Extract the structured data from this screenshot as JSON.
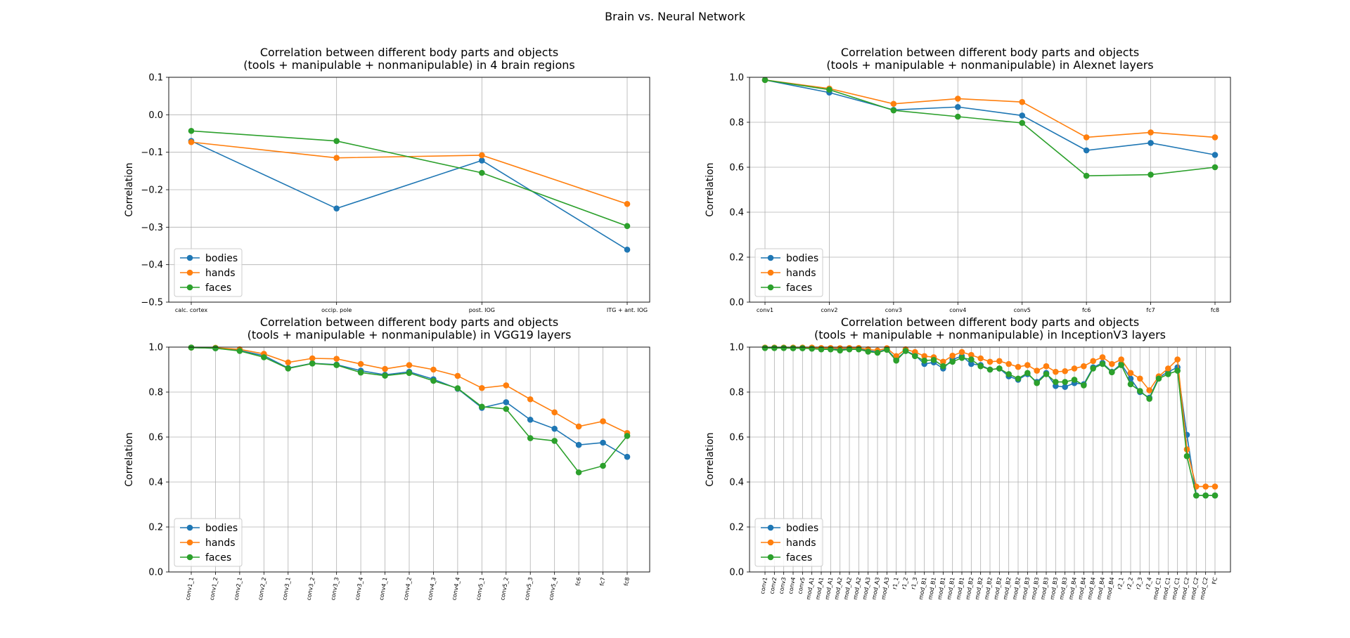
{
  "figure": {
    "suptitle": "Brain vs. Neural Network"
  },
  "chart_data": [
    {
      "type": "line",
      "title": "Correlation between different body parts and objects\n(tools + manipulable + nonmanipulable) in 4 brain regions",
      "xlabel": "",
      "ylabel": "Correlation",
      "ylim": [
        -0.5,
        0.1
      ],
      "yticks": [
        -0.5,
        -0.4,
        -0.3,
        -0.2,
        -0.1,
        0.0,
        0.1
      ],
      "categories": [
        "calc. cortex",
        "occip. pole",
        "post. IOG",
        "ITG + ant. IOG"
      ],
      "xtick_rotation": 0,
      "grid": true,
      "legend": "lower-left",
      "series": [
        {
          "name": "bodies",
          "color": "#1f77b4",
          "values": [
            -0.07,
            -0.25,
            -0.122,
            -0.36
          ]
        },
        {
          "name": "hands",
          "color": "#ff7f0e",
          "values": [
            -0.073,
            -0.115,
            -0.108,
            -0.238
          ]
        },
        {
          "name": "faces",
          "color": "#2ca02c",
          "values": [
            -0.043,
            -0.07,
            -0.155,
            -0.297
          ]
        }
      ]
    },
    {
      "type": "line",
      "title": "Correlation between different body parts and objects\n(tools + manipulable + nonmanipulable) in Alexnet layers",
      "xlabel": "",
      "ylabel": "Correlation",
      "ylim": [
        0.0,
        1.0
      ],
      "yticks": [
        0.0,
        0.2,
        0.4,
        0.6,
        0.8,
        1.0
      ],
      "categories": [
        "conv1",
        "conv2",
        "conv3",
        "conv4",
        "conv5",
        "fc6",
        "fc7",
        "fc8"
      ],
      "xtick_rotation": 0,
      "grid": true,
      "legend": "lower-left",
      "series": [
        {
          "name": "bodies",
          "color": "#1f77b4",
          "values": [
            0.988,
            0.932,
            0.855,
            0.868,
            0.83,
            0.675,
            0.708,
            0.655
          ]
        },
        {
          "name": "hands",
          "color": "#ff7f0e",
          "values": [
            0.988,
            0.95,
            0.882,
            0.905,
            0.89,
            0.733,
            0.755,
            0.733
          ]
        },
        {
          "name": "faces",
          "color": "#2ca02c",
          "values": [
            0.988,
            0.945,
            0.853,
            0.825,
            0.797,
            0.562,
            0.567,
            0.6
          ]
        }
      ]
    },
    {
      "type": "line",
      "title": "Correlation between different body parts and objects\n(tools + manipulable + nonmanipulable) in VGG19 layers",
      "xlabel": "",
      "ylabel": "Correlation",
      "ylim": [
        0.0,
        1.0
      ],
      "yticks": [
        0.0,
        0.2,
        0.4,
        0.6,
        0.8,
        1.0
      ],
      "categories": [
        "conv1_1",
        "conv1_2",
        "conv2_1",
        "conv2_2",
        "conv3_1",
        "conv3_2",
        "conv3_3",
        "conv3_4",
        "conv4_1",
        "conv4_2",
        "conv4_3",
        "conv4_4",
        "conv5_1",
        "conv5_2",
        "conv5_3",
        "conv5_4",
        "fc6",
        "fc7",
        "fc8"
      ],
      "xtick_rotation": -80,
      "grid": true,
      "legend": "lower-left",
      "series": [
        {
          "name": "bodies",
          "color": "#1f77b4",
          "values": [
            0.998,
            0.995,
            0.985,
            0.962,
            0.907,
            0.928,
            0.922,
            0.895,
            0.877,
            0.89,
            0.857,
            0.815,
            0.73,
            0.755,
            0.677,
            0.637,
            0.565,
            0.575,
            0.512
          ]
        },
        {
          "name": "hands",
          "color": "#ff7f0e",
          "values": [
            0.998,
            0.997,
            0.99,
            0.97,
            0.932,
            0.95,
            0.948,
            0.925,
            0.903,
            0.92,
            0.9,
            0.872,
            0.818,
            0.83,
            0.768,
            0.71,
            0.647,
            0.67,
            0.618
          ]
        },
        {
          "name": "faces",
          "color": "#2ca02c",
          "values": [
            0.998,
            0.995,
            0.983,
            0.955,
            0.905,
            0.927,
            0.92,
            0.887,
            0.873,
            0.885,
            0.85,
            0.817,
            0.735,
            0.725,
            0.595,
            0.583,
            0.443,
            0.472,
            0.605
          ]
        }
      ]
    },
    {
      "type": "line",
      "title": "Correlation between different body parts and objects\n(tools + manipulable + nonmanipulable) in InceptionV3 layers",
      "xlabel": "",
      "ylabel": "Correlation",
      "ylim": [
        0.0,
        1.0
      ],
      "yticks": [
        0.0,
        0.2,
        0.4,
        0.6,
        0.8,
        1.0
      ],
      "categories": [
        "conv1",
        "conv2",
        "conv3",
        "conv4",
        "conv5",
        "mod_A1",
        "mod_A1",
        "mod_A1",
        "mod_A2",
        "mod_A2",
        "mod_A2",
        "mod_A3",
        "mod_A3",
        "mod_A3",
        "r1_1",
        "r1_2",
        "r1_3",
        "mod_B1",
        "mod_B1",
        "mod_B1",
        "mod_B1",
        "mod_B1",
        "mod_B2",
        "mod_B2",
        "mod_B2",
        "mod_B2",
        "mod_B2",
        "mod_B2",
        "mod_B3",
        "mod_B3",
        "mod_B3",
        "mod_B3",
        "mod_B3",
        "mod_B4",
        "mod_B4",
        "mod_B4",
        "mod_B4",
        "mod_B4",
        "r2_1",
        "r2_2",
        "r2_3",
        "r2_4",
        "mod_C1",
        "mod_C1",
        "mod_C1",
        "mod_C2",
        "mod_C2",
        "mod_C2",
        "FC"
      ],
      "xtick_rotation": -80,
      "grid": true,
      "legend": "lower-left",
      "series": [
        {
          "name": "bodies",
          "color": "#1f77b4",
          "values": [
            0.997,
            0.997,
            0.997,
            0.996,
            0.996,
            0.995,
            0.993,
            0.993,
            0.99,
            0.993,
            0.993,
            0.985,
            0.978,
            0.99,
            0.945,
            0.983,
            0.965,
            0.925,
            0.932,
            0.905,
            0.945,
            0.96,
            0.925,
            0.92,
            0.9,
            0.905,
            0.87,
            0.855,
            0.88,
            0.845,
            0.885,
            0.827,
            0.823,
            0.84,
            0.835,
            0.91,
            0.93,
            0.89,
            0.925,
            0.86,
            0.8,
            0.775,
            0.865,
            0.89,
            0.91,
            0.61,
            0.34,
            0.34,
            0.34
          ]
        },
        {
          "name": "hands",
          "color": "#ff7f0e",
          "values": [
            0.998,
            0.998,
            0.998,
            0.998,
            0.998,
            0.998,
            0.996,
            0.996,
            0.995,
            0.996,
            0.996,
            0.99,
            0.985,
            0.995,
            0.96,
            0.99,
            0.978,
            0.96,
            0.955,
            0.935,
            0.962,
            0.978,
            0.965,
            0.95,
            0.935,
            0.938,
            0.925,
            0.912,
            0.92,
            0.895,
            0.915,
            0.89,
            0.893,
            0.905,
            0.915,
            0.938,
            0.955,
            0.925,
            0.945,
            0.885,
            0.86,
            0.808,
            0.87,
            0.905,
            0.945,
            0.545,
            0.38,
            0.38,
            0.38
          ]
        },
        {
          "name": "faces",
          "color": "#2ca02c",
          "values": [
            0.996,
            0.996,
            0.996,
            0.995,
            0.995,
            0.993,
            0.99,
            0.99,
            0.985,
            0.99,
            0.99,
            0.98,
            0.975,
            0.988,
            0.94,
            0.983,
            0.96,
            0.94,
            0.943,
            0.915,
            0.935,
            0.952,
            0.945,
            0.915,
            0.9,
            0.905,
            0.88,
            0.86,
            0.885,
            0.84,
            0.88,
            0.845,
            0.845,
            0.855,
            0.83,
            0.905,
            0.925,
            0.888,
            0.92,
            0.835,
            0.805,
            0.77,
            0.86,
            0.88,
            0.895,
            0.515,
            0.34,
            0.34,
            0.34
          ]
        }
      ]
    }
  ]
}
